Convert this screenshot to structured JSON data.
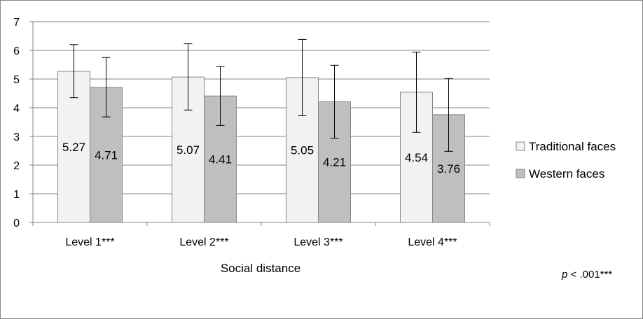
{
  "chart_data": {
    "type": "bar",
    "categories": [
      "Level 1***",
      "Level 2***",
      "Level 3***",
      "Level 4***"
    ],
    "series": [
      {
        "name": "Traditional faces",
        "values": [
          5.27,
          5.07,
          5.05,
          4.54
        ],
        "error_upper": [
          6.2,
          6.23,
          6.38,
          5.94
        ],
        "error_lower": [
          4.35,
          3.92,
          3.72,
          3.14
        ],
        "color": "#f2f2f2"
      },
      {
        "name": "Western faces",
        "values": [
          4.71,
          4.41,
          4.21,
          3.76
        ],
        "error_upper": [
          5.75,
          5.43,
          5.48,
          5.02
        ],
        "error_lower": [
          3.68,
          3.38,
          2.94,
          2.48
        ],
        "color": "#bfbfbf"
      }
    ],
    "data_labels": [
      [
        "5.27",
        "5.07",
        "5.05",
        "4.54"
      ],
      [
        "4.71",
        "4.41",
        "4.21",
        "3.76"
      ]
    ],
    "y_ticks": [
      "0",
      "1",
      "2",
      "3",
      "4",
      "5",
      "6",
      "7"
    ],
    "xlabel": "Social distance",
    "ylabel": "",
    "ylim": [
      0,
      7
    ],
    "grid": true,
    "legend_position": "right",
    "note_italic": "p",
    "note_rest": " < .001***"
  }
}
